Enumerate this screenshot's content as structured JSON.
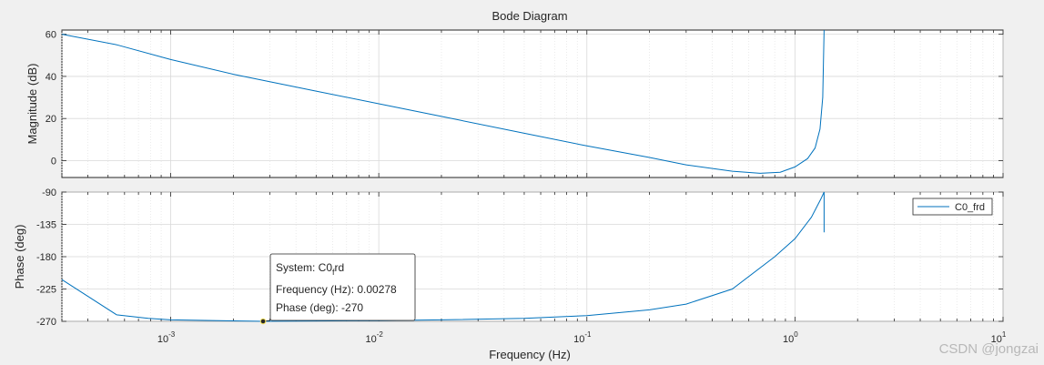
{
  "chart_data": {
    "type": "line",
    "title": "Bode Diagram",
    "xlabel": "Frequency  (Hz)",
    "x_scale": "log",
    "xlim": [
      0.0003,
      10
    ],
    "x_ticks": [
      {
        "base": "10",
        "exp": "-3",
        "value": 0.001
      },
      {
        "base": "10",
        "exp": "-2",
        "value": 0.01
      },
      {
        "base": "10",
        "exp": "-1",
        "value": 0.1
      },
      {
        "base": "10",
        "exp": "0",
        "value": 1
      },
      {
        "base": "10",
        "exp": "1",
        "value": 10
      }
    ],
    "grid": true,
    "line_color": "#0072bd",
    "magnitude": {
      "ylabel": "Magnitude (dB)",
      "ylim": [
        -8,
        62
      ],
      "yticks": [
        0,
        20,
        40,
        60
      ],
      "ytick_labels": [
        "0",
        "20",
        "40",
        "60"
      ],
      "points": [
        {
          "x": 0.0003,
          "y": 60
        },
        {
          "x": 0.00055,
          "y": 55
        },
        {
          "x": 0.001,
          "y": 48
        },
        {
          "x": 0.002,
          "y": 41
        },
        {
          "x": 0.005,
          "y": 33
        },
        {
          "x": 0.01,
          "y": 27
        },
        {
          "x": 0.02,
          "y": 21
        },
        {
          "x": 0.05,
          "y": 13
        },
        {
          "x": 0.1,
          "y": 7
        },
        {
          "x": 0.2,
          "y": 1.5
        },
        {
          "x": 0.3,
          "y": -2
        },
        {
          "x": 0.5,
          "y": -5
        },
        {
          "x": 0.68,
          "y": -6
        },
        {
          "x": 0.85,
          "y": -5.5
        },
        {
          "x": 1.0,
          "y": -3
        },
        {
          "x": 1.15,
          "y": 1
        },
        {
          "x": 1.25,
          "y": 6
        },
        {
          "x": 1.32,
          "y": 15
        },
        {
          "x": 1.36,
          "y": 30
        },
        {
          "x": 1.38,
          "y": 62
        }
      ]
    },
    "phase": {
      "ylabel": "Phase (deg)",
      "ylim": [
        -270,
        -90
      ],
      "yticks": [
        -270,
        -225,
        -180,
        -135,
        -90
      ],
      "ytick_labels": [
        "-270",
        "-225",
        "-180",
        "-135",
        "-90"
      ],
      "points": [
        {
          "x": 0.0003,
          "y": -212
        },
        {
          "x": 0.00055,
          "y": -261
        },
        {
          "x": 0.00078,
          "y": -266
        },
        {
          "x": 0.001,
          "y": -268
        },
        {
          "x": 0.00278,
          "y": -270
        },
        {
          "x": 0.01,
          "y": -269
        },
        {
          "x": 0.02,
          "y": -268
        },
        {
          "x": 0.05,
          "y": -266
        },
        {
          "x": 0.1,
          "y": -262
        },
        {
          "x": 0.2,
          "y": -254
        },
        {
          "x": 0.3,
          "y": -246
        },
        {
          "x": 0.5,
          "y": -225
        },
        {
          "x": 0.8,
          "y": -180
        },
        {
          "x": 1.0,
          "y": -155
        },
        {
          "x": 1.2,
          "y": -125
        },
        {
          "x": 1.33,
          "y": -100
        },
        {
          "x": 1.38,
          "y": -90
        },
        {
          "x": 1.38,
          "y": -146
        }
      ]
    },
    "legend": {
      "entries": [
        "C0_frd"
      ],
      "placement": "top-right"
    },
    "datatip": {
      "system_label": "System: C0",
      "system_sub": "f",
      "system_rest": "rd",
      "frequency_text": "Frequency (Hz): 0.00278",
      "phase_text": "Phase (deg): -270",
      "x": 0.00278,
      "y": -270
    }
  },
  "watermark": "CSDN @jongzai"
}
